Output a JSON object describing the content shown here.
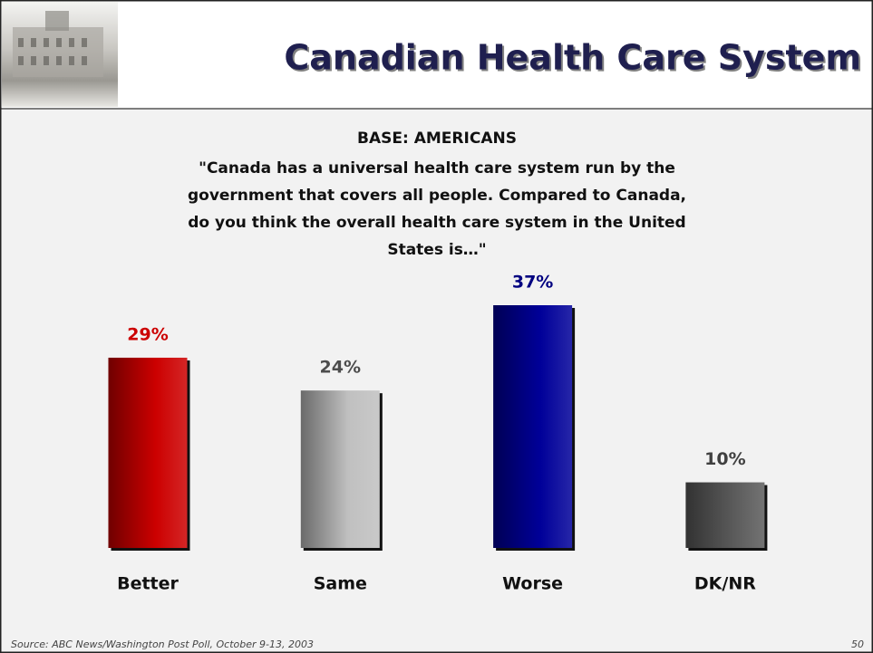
{
  "chart_data": {
    "type": "bar",
    "title": "Canadian Health Care System",
    "subtitle": "BASE:  AMERICANS",
    "question": [
      "\"Canada has a universal health care system run by the",
      "government that covers all people. Compared to Canada,",
      "do you think the overall health care system in the United",
      "States is…\""
    ],
    "categories": [
      "Better",
      "Same",
      "Worse",
      "DK/NR"
    ],
    "values": [
      29,
      24,
      37,
      10
    ],
    "value_labels": [
      "29%",
      "24%",
      "37%",
      "10%"
    ],
    "colors": [
      "#cc0000",
      "#c0c0c0",
      "#000099",
      "#5a5a5a"
    ],
    "label_colors": [
      "#cc0000",
      "#4d4d4d",
      "#000080",
      "#404040"
    ],
    "source": "Source: ABC News/Washington Post Poll, October 9-13, 2003",
    "page": "50"
  }
}
